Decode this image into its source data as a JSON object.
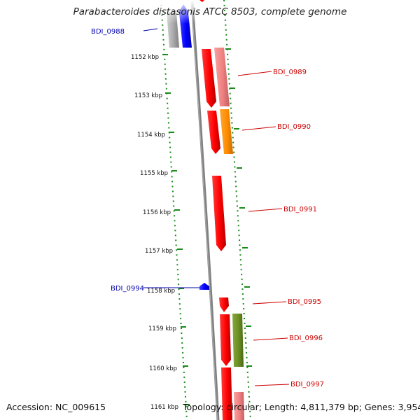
{
  "title": "Parabacteroides distasonis ATCC 8503, complete genome",
  "footer": {
    "accession": "Accession: NC_009615",
    "summary": "Topology: circular; Length: 4,811,379 bp; Genes: 3,954"
  },
  "ticks": [
    "1152 kbp",
    "1153 kbp",
    "1154 kbp",
    "1155 kbp",
    "1156 kbp",
    "1157 kbp",
    "1158 kbp",
    "1159 kbp",
    "1160 kbp",
    "1161 kbp"
  ],
  "colors": {
    "backbone": "#808080",
    "forward_strand": "#ff0000",
    "reverse_strand": "#0000ff",
    "forward_label": "#cc0000",
    "reverse_label": "#0000aa",
    "tick": "#1a8a1a",
    "cog_pink": "#f08080",
    "cog_orange": "#ff8c00",
    "cog_olive": "#6b8e23",
    "cog_gray": "#a0a0a0"
  },
  "genes": [
    {
      "label": "BDI_0988",
      "strand": "reverse"
    },
    {
      "label": "BDI_0989",
      "strand": "forward"
    },
    {
      "label": "BDI_0990",
      "strand": "forward"
    },
    {
      "label": "BDI_0991",
      "strand": "forward"
    },
    {
      "label": "BDI_0994",
      "strand": "reverse"
    },
    {
      "label": "BDI_0995",
      "strand": "forward"
    },
    {
      "label": "BDI_0996",
      "strand": "forward"
    },
    {
      "label": "BDI_0997",
      "strand": "forward"
    }
  ]
}
